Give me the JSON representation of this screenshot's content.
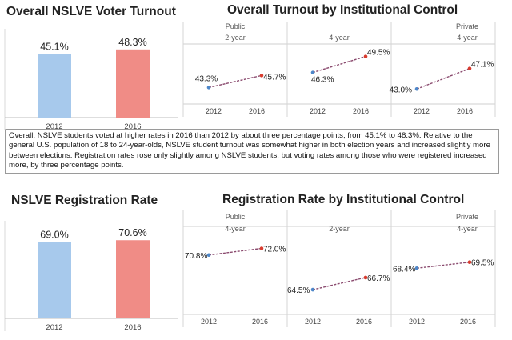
{
  "panels": {
    "turnout_overall_title": "Overall NSLVE Voter Turnout",
    "turnout_control_title": "Overall Turnout by Institutional Control",
    "registration_overall_title": "NSLVE Registration Rate",
    "registration_control_title": "Registration Rate by Institutional Control"
  },
  "summary_text": "Overall, NSLVE students voted at higher rates in 2016 than 2012 by about three percentage points, from 45.1% to 48.3%. Relative to the general U.S. population of 18 to 24-year-olds, NSLVE student turnout was somewhat higher in both election years and increased slightly more between elections. Registration rates rose only slightly among NSLVE students, but voting rates among those who were registered increased more, by three percentage points.",
  "colors": {
    "blue_bar": "#a7c9ec",
    "red_bar": "#f08c86",
    "blue_dot": "#4e87c9",
    "red_dot": "#d83b2e",
    "line": "#8a4a6e"
  },
  "chart_data": [
    {
      "type": "bar",
      "title": "Overall NSLVE Voter Turnout",
      "categories": [
        "2012",
        "2016"
      ],
      "values": [
        45.1,
        48.3
      ],
      "labels": [
        "45.1%",
        "48.3%"
      ],
      "ylim": [
        0,
        55
      ]
    },
    {
      "type": "line",
      "title": "Overall Turnout by Institutional Control",
      "x": [
        "2012",
        "2016"
      ],
      "ylim": [
        40,
        52
      ],
      "panes": [
        {
          "group": "Public",
          "sub": "2-year",
          "values": [
            43.3,
            45.7
          ],
          "labels": [
            "43.3%",
            "45.7%"
          ]
        },
        {
          "group": "",
          "sub": "4-year",
          "values": [
            46.3,
            49.5
          ],
          "labels": [
            "46.3%",
            "49.5%"
          ]
        },
        {
          "group": "Private",
          "sub": "4-year",
          "values": [
            43.0,
            47.1
          ],
          "labels": [
            "43.0%",
            "47.1%"
          ]
        }
      ]
    },
    {
      "type": "bar",
      "title": "NSLVE Registration Rate",
      "categories": [
        "2012",
        "2016"
      ],
      "values": [
        69.0,
        70.6
      ],
      "labels": [
        "69.0%",
        "70.6%"
      ],
      "ylim": [
        0,
        78
      ]
    },
    {
      "type": "line",
      "title": "Registration Rate by Institutional Control",
      "x": [
        "2012",
        "2016"
      ],
      "ylim": [
        60,
        76
      ],
      "panes": [
        {
          "group": "Public",
          "sub": "4-year",
          "values": [
            70.8,
            72.0
          ],
          "labels": [
            "70.8%",
            "72.0%"
          ]
        },
        {
          "group": "",
          "sub": "2-year",
          "values": [
            64.5,
            66.7
          ],
          "labels": [
            "64.5%",
            "66.7%"
          ]
        },
        {
          "group": "Private",
          "sub": "4-year",
          "values": [
            68.4,
            69.5
          ],
          "labels": [
            "68.4%",
            "69.5%"
          ]
        }
      ]
    }
  ]
}
